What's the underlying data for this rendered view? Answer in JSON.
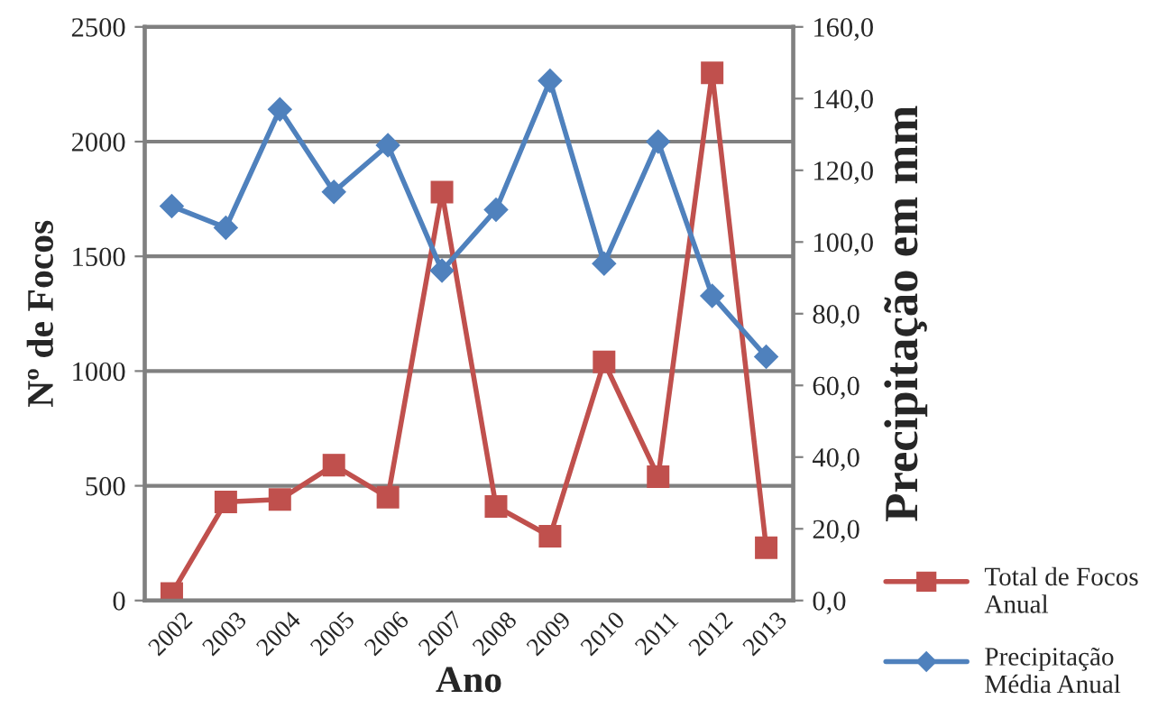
{
  "chart_data": {
    "type": "line",
    "xlabel": "Ano",
    "ylabel": "Nº de Focos",
    "y2label": "Precipitação em mm",
    "categories": [
      "2002",
      "2003",
      "2004",
      "2005",
      "2006",
      "2007",
      "2008",
      "2009",
      "2010",
      "2011",
      "2012",
      "2013"
    ],
    "series": [
      {
        "name": "Total de Focos Anual",
        "color": "#c0504d",
        "marker": "square",
        "values": [
          30,
          430,
          440,
          590,
          450,
          1780,
          410,
          280,
          1040,
          540,
          2300,
          230
        ]
      },
      {
        "name": "Precipitação Média Anual",
        "color": "#4f81bd",
        "marker": "diamond",
        "axis": "y2",
        "values": [
          110,
          104,
          137,
          114,
          127,
          92,
          109,
          145,
          94,
          128,
          85,
          68
        ]
      }
    ],
    "ylim": [
      0,
      2500
    ],
    "yticks": [
      0,
      500,
      1000,
      1500,
      2000,
      2500
    ],
    "y2lim": [
      0,
      160
    ],
    "y2ticks": [
      {
        "value": 0,
        "label": "0,0"
      },
      {
        "value": 20,
        "label": "20,0"
      },
      {
        "value": 40,
        "label": "40,0"
      },
      {
        "value": 60,
        "label": "60,0"
      },
      {
        "value": 80,
        "label": "80,0"
      },
      {
        "value": 100,
        "label": "100,0"
      },
      {
        "value": 120,
        "label": "120,0"
      },
      {
        "value": 140,
        "label": "140,0"
      },
      {
        "value": 160,
        "label": "160,0"
      }
    ],
    "grid": "y",
    "legend": "bottom right",
    "line_style": "solid"
  }
}
